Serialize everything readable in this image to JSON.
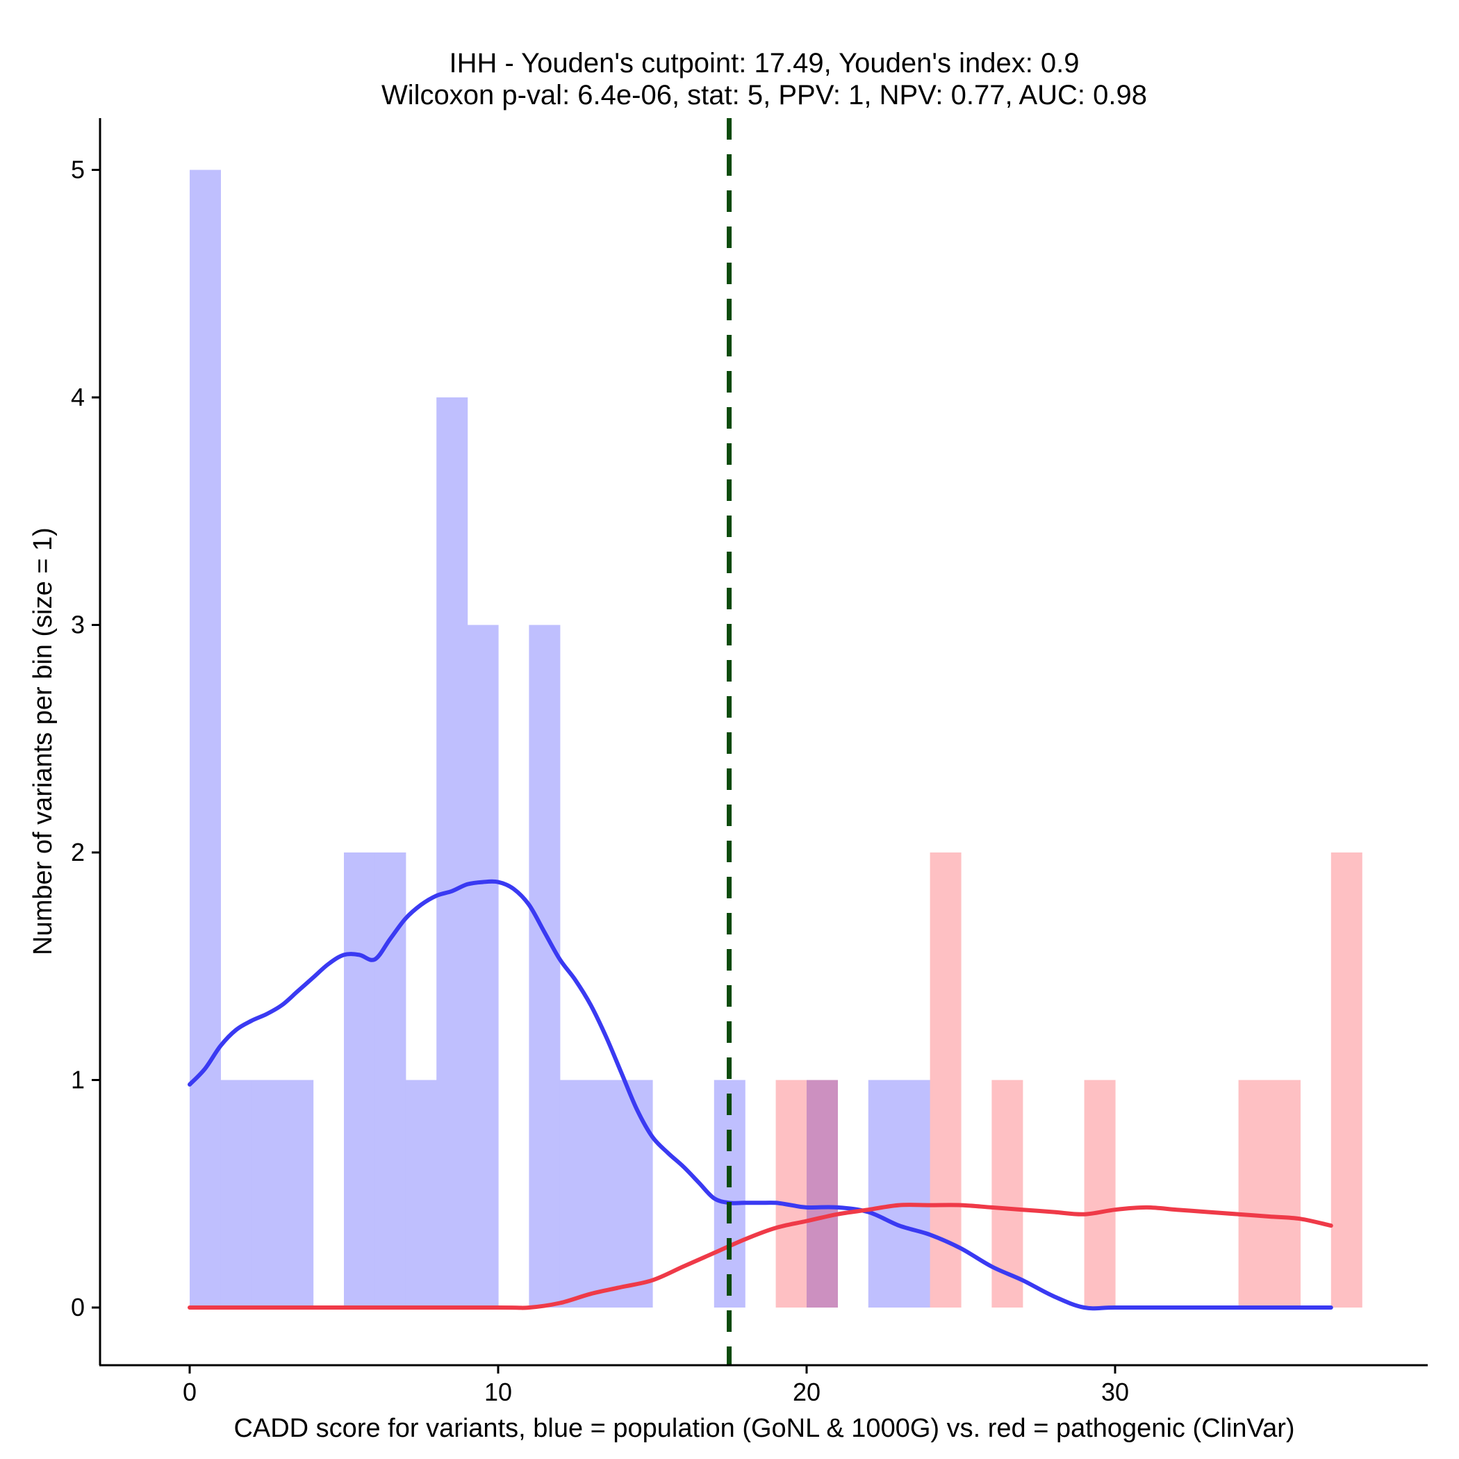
{
  "chart_data": {
    "type": "bar",
    "title_line1": "IHH - Youden's cutpoint: 17.49, Youden's index: 0.9",
    "title_line2": "Wilcoxon p-val: 6.4e-06, stat: 5, PPV: 1, NPV: 0.77, AUC: 0.98",
    "xlabel": "CADD score for variants, blue = population (GoNL & 1000G) vs. red = pathogenic (ClinVar)",
    "ylabel": "Number of variants per bin (size = 1)",
    "xlim": [
      -3,
      40
    ],
    "ylim": [
      -0.25,
      5.25
    ],
    "xticks": [
      0,
      10,
      20,
      30
    ],
    "xtick_labels": [
      "0",
      "10",
      "20",
      "30"
    ],
    "yticks": [
      0,
      1,
      2,
      3,
      4,
      5
    ],
    "ytick_labels": [
      "0",
      "1",
      "2",
      "3",
      "4",
      "5"
    ],
    "bin_width": 1,
    "cutpoint": 17.49,
    "colors": {
      "population_bar": "#bfbffe",
      "pathogenic_bar": "#fec0c3",
      "overlap_bar": "#cc90c0",
      "population_line": "#3a3af2",
      "pathogenic_line": "#ef3a48",
      "cutpoint_line": "#0b4a0b"
    },
    "series": [
      {
        "name": "population (GoNL & 1000G)",
        "bins": [
          {
            "start": 0,
            "count": 5
          },
          {
            "start": 1,
            "count": 1
          },
          {
            "start": 2,
            "count": 1
          },
          {
            "start": 3,
            "count": 1
          },
          {
            "start": 5,
            "count": 2
          },
          {
            "start": 6,
            "count": 2
          },
          {
            "start": 7,
            "count": 1
          },
          {
            "start": 8,
            "count": 4
          },
          {
            "start": 9,
            "count": 3
          },
          {
            "start": 11,
            "count": 3
          },
          {
            "start": 12,
            "count": 1
          },
          {
            "start": 13,
            "count": 1
          },
          {
            "start": 14,
            "count": 1
          },
          {
            "start": 17,
            "count": 1
          },
          {
            "start": 20,
            "count": 1
          },
          {
            "start": 22,
            "count": 1
          },
          {
            "start": 23,
            "count": 1
          }
        ]
      },
      {
        "name": "pathogenic (ClinVar)",
        "bins": [
          {
            "start": 19,
            "count": 1
          },
          {
            "start": 20,
            "count": 1
          },
          {
            "start": 24,
            "count": 2
          },
          {
            "start": 26,
            "count": 1
          },
          {
            "start": 29,
            "count": 1
          },
          {
            "start": 34,
            "count": 1
          },
          {
            "start": 35,
            "count": 1
          },
          {
            "start": 37,
            "count": 2
          }
        ]
      }
    ],
    "density_curves": [
      {
        "name": "population density",
        "x": [
          0,
          0.5,
          1,
          1.5,
          2,
          2.5,
          3,
          3.5,
          4,
          4.5,
          5,
          5.5,
          6,
          6.5,
          7,
          7.5,
          8,
          8.5,
          9,
          9.5,
          10,
          10.5,
          11,
          11.5,
          12,
          12.5,
          13,
          13.5,
          14,
          14.5,
          15,
          15.5,
          16,
          16.5,
          17,
          17.5,
          18,
          18.5,
          19,
          19.5,
          20,
          21,
          22,
          23,
          24,
          25,
          26,
          27,
          28,
          29,
          30,
          32,
          34,
          36,
          37
        ],
        "y": [
          0.98,
          1.05,
          1.15,
          1.22,
          1.26,
          1.29,
          1.33,
          1.39,
          1.45,
          1.51,
          1.55,
          1.55,
          1.53,
          1.62,
          1.71,
          1.77,
          1.81,
          1.83,
          1.86,
          1.87,
          1.87,
          1.84,
          1.77,
          1.65,
          1.53,
          1.44,
          1.33,
          1.19,
          1.03,
          0.87,
          0.75,
          0.68,
          0.62,
          0.55,
          0.48,
          0.46,
          0.46,
          0.46,
          0.46,
          0.45,
          0.44,
          0.44,
          0.42,
          0.36,
          0.32,
          0.26,
          0.18,
          0.12,
          0.05,
          0.0,
          0.0,
          0.0,
          0.0,
          0.0,
          0.0
        ]
      },
      {
        "name": "pathogenic density",
        "x": [
          0,
          5,
          10,
          11,
          12,
          13,
          14,
          15,
          16,
          17,
          18,
          19,
          20,
          21,
          22,
          23,
          24,
          25,
          26,
          27,
          28,
          29,
          30,
          31,
          32,
          33,
          34,
          35,
          36,
          37
        ],
        "y": [
          0.0,
          0.0,
          0.0,
          0.0,
          0.02,
          0.06,
          0.09,
          0.12,
          0.18,
          0.24,
          0.3,
          0.35,
          0.38,
          0.41,
          0.43,
          0.45,
          0.45,
          0.45,
          0.44,
          0.43,
          0.42,
          0.41,
          0.43,
          0.44,
          0.43,
          0.42,
          0.41,
          0.4,
          0.39,
          0.36
        ]
      }
    ]
  }
}
